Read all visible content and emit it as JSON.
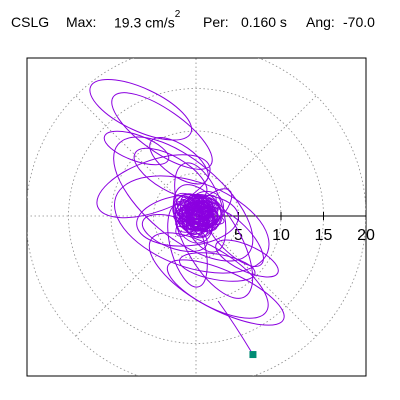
{
  "header": {
    "station": "CSLG",
    "max_label": "Max:",
    "max_value": "19.3 cm/s",
    "max_exponent": "2",
    "per_label": "Per:",
    "per_value": "0.160 s",
    "ang_label": "Ang:",
    "ang_value": "-70.0"
  },
  "chart_data": {
    "type": "scatter",
    "subtype": "polar-orbit-trace",
    "title": "CSLG Max: 19.3 cm/s2 Per: 0.160 s Ang: -70.0",
    "radial_ticks": [
      5,
      10,
      15,
      20
    ],
    "radial_tick_labels": [
      "5",
      "10",
      "15",
      "20"
    ],
    "radial_range": [
      0,
      20
    ],
    "grid": true,
    "grid_style": "dotted",
    "spokes_deg": [
      0,
      45,
      90,
      135,
      180,
      225,
      270,
      315
    ],
    "series": [
      {
        "color": "#8b00e0",
        "loops": [
          [
            -6.5,
            12.5,
            2.5,
            6.5,
            65
          ],
          [
            -4.0,
            10.0,
            2.5,
            7.0,
            55
          ],
          [
            1.5,
            -7.0,
            3.2,
            8.0,
            58
          ],
          [
            3.5,
            -9.0,
            2.4,
            7.5,
            65
          ],
          [
            -1.5,
            2.0,
            4.5,
            10.0,
            50
          ],
          [
            -0.5,
            -1.0,
            5.0,
            9.5,
            70
          ],
          [
            -5.0,
            3.5,
            3.0,
            7.0,
            110
          ],
          [
            2.0,
            -3.0,
            3.2,
            7.5,
            30
          ],
          [
            0.5,
            1.0,
            2.5,
            5.5,
            20
          ],
          [
            -1.0,
            -0.5,
            3.0,
            6.0,
            95
          ],
          [
            4.5,
            -2.5,
            1.8,
            4.5,
            45
          ],
          [
            -3.0,
            5.0,
            2.0,
            4.8,
            60
          ],
          [
            1.5,
            0.5,
            1.5,
            3.5,
            135
          ],
          [
            -2.5,
            -2.0,
            1.8,
            4.0,
            70
          ],
          [
            0.0,
            0.0,
            1.2,
            2.8,
            60
          ],
          [
            0.5,
            -0.5,
            0.9,
            2.2,
            110
          ],
          [
            -0.5,
            0.5,
            1.0,
            2.0,
            30
          ],
          [
            2.5,
            -6.0,
            1.5,
            4.5,
            80
          ],
          [
            -2.0,
            6.5,
            1.8,
            4.0,
            55
          ],
          [
            6.0,
            -5.0,
            1.5,
            4.0,
            65
          ],
          [
            -1.0,
            -3.5,
            2.0,
            5.0,
            15
          ],
          [
            -7.0,
            8.0,
            1.5,
            4.0,
            70
          ]
        ],
        "core_scribble": {
          "center": [
            0.3,
            0.2
          ],
          "radius": [
            2.2,
            2.8
          ],
          "count": 60
        },
        "end_marker": {
          "color": "#008b74",
          "x": 6.7,
          "y": -16.3
        }
      }
    ]
  }
}
